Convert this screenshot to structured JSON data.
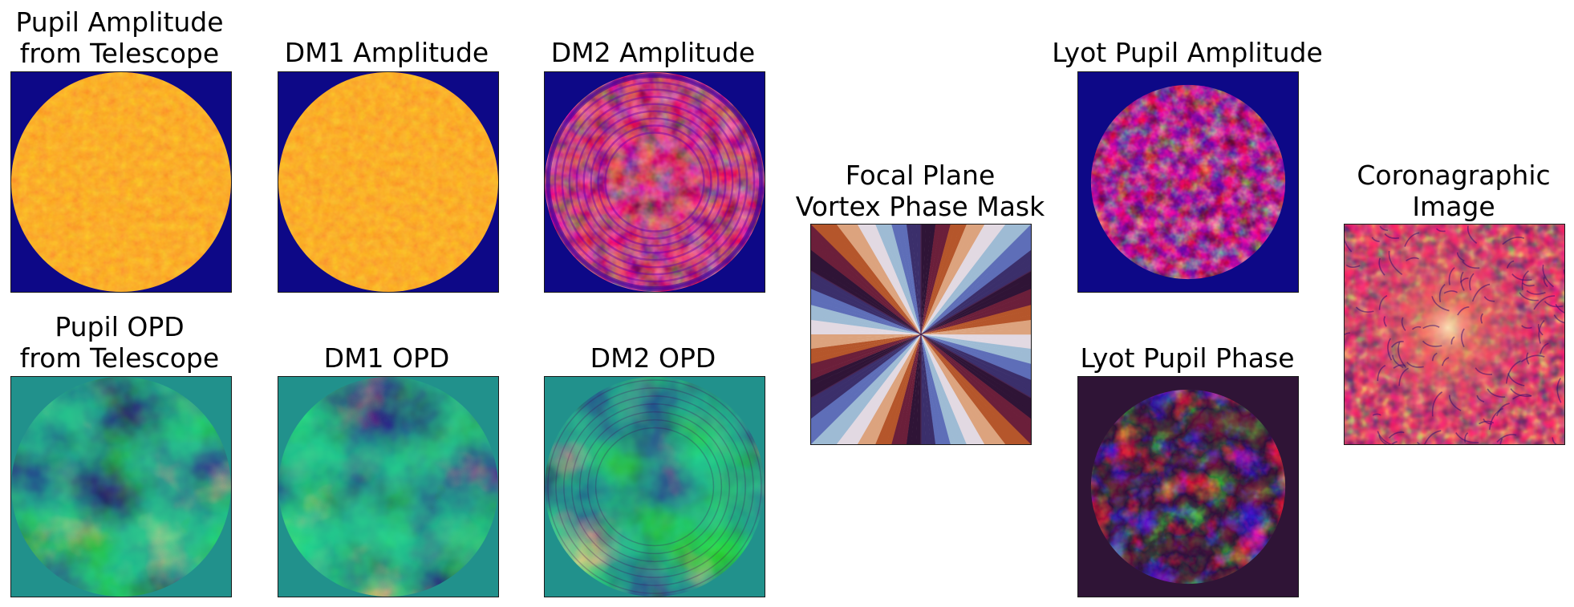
{
  "figure": {
    "panels": [
      {
        "id": "pupil-amp",
        "title": "Pupil Amplitude\nfrom Telescope",
        "kind": "amplitude",
        "colormap": "plasma",
        "background": "#0d0887",
        "disk": "#fcae2c"
      },
      {
        "id": "dm1-amp",
        "title": "DM1 Amplitude",
        "kind": "amplitude",
        "colormap": "plasma",
        "background": "#0d0887",
        "disk": "#fcae2c"
      },
      {
        "id": "dm2-amp",
        "title": "DM2 Amplitude",
        "kind": "amplitude-ringed",
        "colormap": "plasma",
        "background": "#0d0887",
        "disk": "#d0487a"
      },
      {
        "id": "pupil-opd",
        "title": "Pupil OPD\nfrom Telescope",
        "kind": "opd",
        "colormap": "viridis",
        "background": "#21918c"
      },
      {
        "id": "dm1-opd",
        "title": "DM1 OPD",
        "kind": "opd",
        "colormap": "viridis",
        "background": "#21918c"
      },
      {
        "id": "dm2-opd",
        "title": "DM2 OPD",
        "kind": "opd",
        "colormap": "viridis",
        "background": "#21918c"
      },
      {
        "id": "vortex-mask",
        "title": "Focal Plane\nVortex Phase Mask",
        "kind": "vortex",
        "colormap": "twilight_shifted"
      },
      {
        "id": "lyot-amp",
        "title": "Lyot Pupil Amplitude",
        "kind": "lyot-amplitude",
        "colormap": "plasma",
        "background": "#0d0887"
      },
      {
        "id": "lyot-phase",
        "title": "Lyot Pupil Phase",
        "kind": "lyot-phase",
        "colormap": "twilight",
        "background": "#2f1436"
      },
      {
        "id": "coro-image",
        "title": "Coronagraphic\nImage",
        "kind": "speckle",
        "colormap": "magma"
      }
    ]
  }
}
